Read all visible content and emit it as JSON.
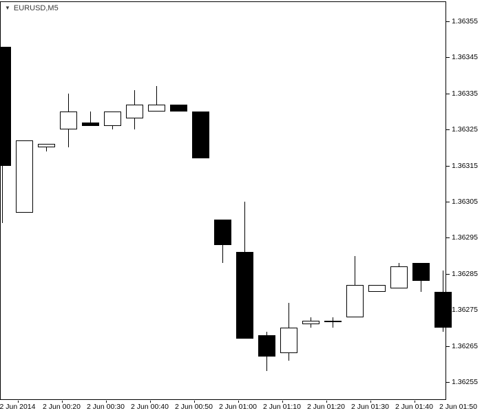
{
  "window": {
    "symbol_label": "EURUSD,M5",
    "dropdown_icon": "▼"
  },
  "colors": {
    "background": "#ffffff",
    "frame": "#000000",
    "text": "#000000",
    "up_body": "#ffffff",
    "down_body": "#000000",
    "wick": "#000000"
  },
  "chart_data": {
    "type": "candlestick",
    "title": "EURUSD,M5",
    "symbol": "EURUSD",
    "timeframe": "M5",
    "grid": false,
    "legend": "none",
    "y_axis": {
      "side": "right",
      "ylim": [
        1.3625,
        1.3636
      ],
      "tick_step": 0.0001,
      "ticks": [
        1.36355,
        1.36345,
        1.36335,
        1.36325,
        1.36315,
        1.36305,
        1.36295,
        1.36285,
        1.36275,
        1.36265,
        1.36255
      ]
    },
    "x_axis": {
      "labels": [
        "2 Jun 2014",
        "2 Jun 00:20",
        "2 Jun 00:30",
        "2 Jun 00:40",
        "2 Jun 00:50",
        "2 Jun 01:00",
        "2 Jun 01:10",
        "2 Jun 01:20",
        "2 Jun 01:30",
        "2 Jun 01:40",
        "2 Jun 01:50"
      ]
    },
    "candles": [
      {
        "time": "00:05",
        "open": 1.36348,
        "high": 1.36348,
        "low": 1.36299,
        "close": 1.36315
      },
      {
        "time": "00:10",
        "open": 1.36302,
        "high": 1.36322,
        "low": 1.36302,
        "close": 1.36322
      },
      {
        "time": "00:15",
        "open": 1.3632,
        "high": 1.36321,
        "low": 1.36319,
        "close": 1.36321
      },
      {
        "time": "00:20",
        "open": 1.36325,
        "high": 1.36335,
        "low": 1.3632,
        "close": 1.3633
      },
      {
        "time": "00:25",
        "open": 1.36327,
        "high": 1.3633,
        "low": 1.36326,
        "close": 1.36326
      },
      {
        "time": "00:30",
        "open": 1.36326,
        "high": 1.3633,
        "low": 1.36325,
        "close": 1.3633
      },
      {
        "time": "00:35",
        "open": 1.36328,
        "high": 1.36336,
        "low": 1.36325,
        "close": 1.36332
      },
      {
        "time": "00:40",
        "open": 1.3633,
        "high": 1.36337,
        "low": 1.3633,
        "close": 1.36332
      },
      {
        "time": "00:45",
        "open": 1.36332,
        "high": 1.36332,
        "low": 1.3633,
        "close": 1.3633
      },
      {
        "time": "00:50",
        "open": 1.3633,
        "high": 1.3633,
        "low": 1.36317,
        "close": 1.36317
      },
      {
        "time": "00:55",
        "open": 1.363,
        "high": 1.363,
        "low": 1.36288,
        "close": 1.36293
      },
      {
        "time": "01:00",
        "open": 1.36291,
        "high": 1.36305,
        "low": 1.36267,
        "close": 1.36267
      },
      {
        "time": "01:05",
        "open": 1.36268,
        "high": 1.36269,
        "low": 1.36258,
        "close": 1.36262
      },
      {
        "time": "01:10",
        "open": 1.36263,
        "high": 1.36277,
        "low": 1.36261,
        "close": 1.3627
      },
      {
        "time": "01:15",
        "open": 1.36271,
        "high": 1.36273,
        "low": 1.3627,
        "close": 1.36272
      },
      {
        "time": "01:20",
        "open": 1.36272,
        "high": 1.36273,
        "low": 1.3627,
        "close": 1.36272
      },
      {
        "time": "01:25",
        "open": 1.36273,
        "high": 1.3629,
        "low": 1.36273,
        "close": 1.36282
      },
      {
        "time": "01:30",
        "open": 1.3628,
        "high": 1.36282,
        "low": 1.3628,
        "close": 1.36282
      },
      {
        "time": "01:35",
        "open": 1.36281,
        "high": 1.36288,
        "low": 1.36281,
        "close": 1.36287
      },
      {
        "time": "01:40",
        "open": 1.36288,
        "high": 1.36288,
        "low": 1.3628,
        "close": 1.36283
      },
      {
        "time": "01:45",
        "open": 1.3628,
        "high": 1.36286,
        "low": 1.36269,
        "close": 1.3627
      }
    ]
  }
}
